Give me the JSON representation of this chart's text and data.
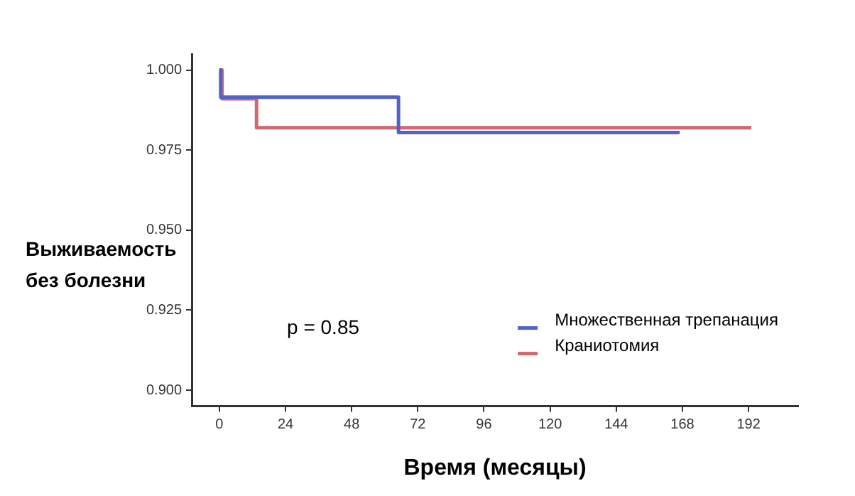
{
  "chart_data": {
    "type": "step",
    "xlabel": "Время (месяцы)",
    "ylabel": "Выживаемость\nбез болезни",
    "series": [
      {
        "name": "Множественная трепанация",
        "color": "#4f63c9",
        "x": [
          0,
          0.5,
          65,
          167
        ],
        "values": [
          1,
          0.9915,
          0.9805,
          0.9805
        ]
      },
      {
        "name": "Краниотомия",
        "color": "#d0686e",
        "x": [
          0,
          1,
          13.5,
          193
        ],
        "values": [
          1,
          0.991,
          0.982,
          0.982
        ]
      }
    ],
    "xlim": [
      -10,
      210
    ],
    "xticks": [
      0,
      24,
      48,
      72,
      96,
      120,
      144,
      168,
      192
    ],
    "ylim": [
      0.895,
      1.005
    ],
    "yticks": [
      {
        "value": 0.9,
        "label": "0.900"
      },
      0.925,
      {
        "value": 0.95,
        "label": "0.950"
      },
      0.975,
      {
        "value": 1,
        "label": "1.000"
      }
    ],
    "grid": false,
    "legend": "bottom right",
    "marker": "none",
    "line_style": "solid",
    "annotations": [
      "p = 0.85"
    ]
  }
}
